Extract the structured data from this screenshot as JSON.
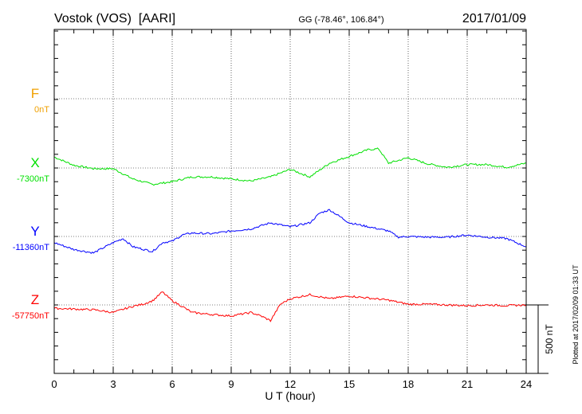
{
  "chart_data": {
    "type": "line",
    "title": "Vostok (VOS)  [AARI]",
    "coords": "GG (-78.46°, 106.84°)",
    "date": "2017/01/09",
    "xlabel": "U T (hour)",
    "xlim": [
      0,
      24
    ],
    "xticks": [
      "0",
      "3",
      "6",
      "9",
      "12",
      "15",
      "18",
      "21",
      "24"
    ],
    "scale_label": "500 nT",
    "scale_nT": 500,
    "plotted_note": "Plotted at 2017/02/09 01:33 UT",
    "grid": true,
    "series": [
      {
        "name": "F",
        "base_label": "0nT",
        "color": "#f0a000",
        "points": []
      },
      {
        "name": "X",
        "base_label": "-7300nT",
        "color": "#00e000",
        "points": [
          [
            0,
            80
          ],
          [
            1,
            20
          ],
          [
            2,
            -5
          ],
          [
            3,
            -5
          ],
          [
            4,
            -80
          ],
          [
            5,
            -120
          ],
          [
            6,
            -100
          ],
          [
            7,
            -65
          ],
          [
            8,
            -65
          ],
          [
            9,
            -80
          ],
          [
            10,
            -95
          ],
          [
            11,
            -65
          ],
          [
            12,
            -10
          ],
          [
            13,
            -65
          ],
          [
            14,
            35
          ],
          [
            15,
            85
          ],
          [
            16,
            135
          ],
          [
            16.5,
            140
          ],
          [
            17,
            35
          ],
          [
            18,
            75
          ],
          [
            19,
            30
          ],
          [
            20,
            5
          ],
          [
            21,
            25
          ],
          [
            22,
            25
          ],
          [
            23,
            5
          ],
          [
            24,
            35
          ]
        ]
      },
      {
        "name": "Y",
        "base_label": "-11360nT",
        "color": "#0000ff",
        "points": [
          [
            0,
            -45
          ],
          [
            1,
            -95
          ],
          [
            2,
            -120
          ],
          [
            3,
            -45
          ],
          [
            3.5,
            -15
          ],
          [
            4,
            -75
          ],
          [
            5,
            -110
          ],
          [
            5.5,
            -45
          ],
          [
            6,
            -35
          ],
          [
            6.5,
            10
          ],
          [
            7,
            25
          ],
          [
            8,
            20
          ],
          [
            9,
            40
          ],
          [
            10,
            55
          ],
          [
            11,
            100
          ],
          [
            12,
            70
          ],
          [
            13,
            100
          ],
          [
            13.5,
            170
          ],
          [
            14,
            195
          ],
          [
            15,
            100
          ],
          [
            16,
            70
          ],
          [
            17,
            40
          ],
          [
            17.5,
            -5
          ],
          [
            18,
            0
          ],
          [
            19,
            -5
          ],
          [
            20,
            -5
          ],
          [
            21,
            10
          ],
          [
            22,
            -5
          ],
          [
            23,
            -15
          ],
          [
            24,
            -75
          ]
        ]
      },
      {
        "name": "Z",
        "base_label": "-57750nT",
        "color": "#ff0000",
        "points": [
          [
            0,
            -25
          ],
          [
            1,
            -30
          ],
          [
            2,
            -35
          ],
          [
            3,
            -55
          ],
          [
            4,
            -10
          ],
          [
            4.5,
            5
          ],
          [
            5,
            30
          ],
          [
            5.5,
            95
          ],
          [
            6,
            30
          ],
          [
            6.5,
            -10
          ],
          [
            7,
            -55
          ],
          [
            8,
            -70
          ],
          [
            9,
            -80
          ],
          [
            10,
            -55
          ],
          [
            10.5,
            -80
          ],
          [
            11,
            -115
          ],
          [
            11.5,
            5
          ],
          [
            12,
            45
          ],
          [
            13,
            75
          ],
          [
            14,
            45
          ],
          [
            15,
            65
          ],
          [
            16,
            50
          ],
          [
            17,
            35
          ],
          [
            18,
            5
          ],
          [
            19,
            5
          ],
          [
            20,
            0
          ],
          [
            21,
            -5
          ],
          [
            22,
            0
          ],
          [
            23,
            -5
          ],
          [
            24,
            0
          ]
        ]
      }
    ]
  }
}
